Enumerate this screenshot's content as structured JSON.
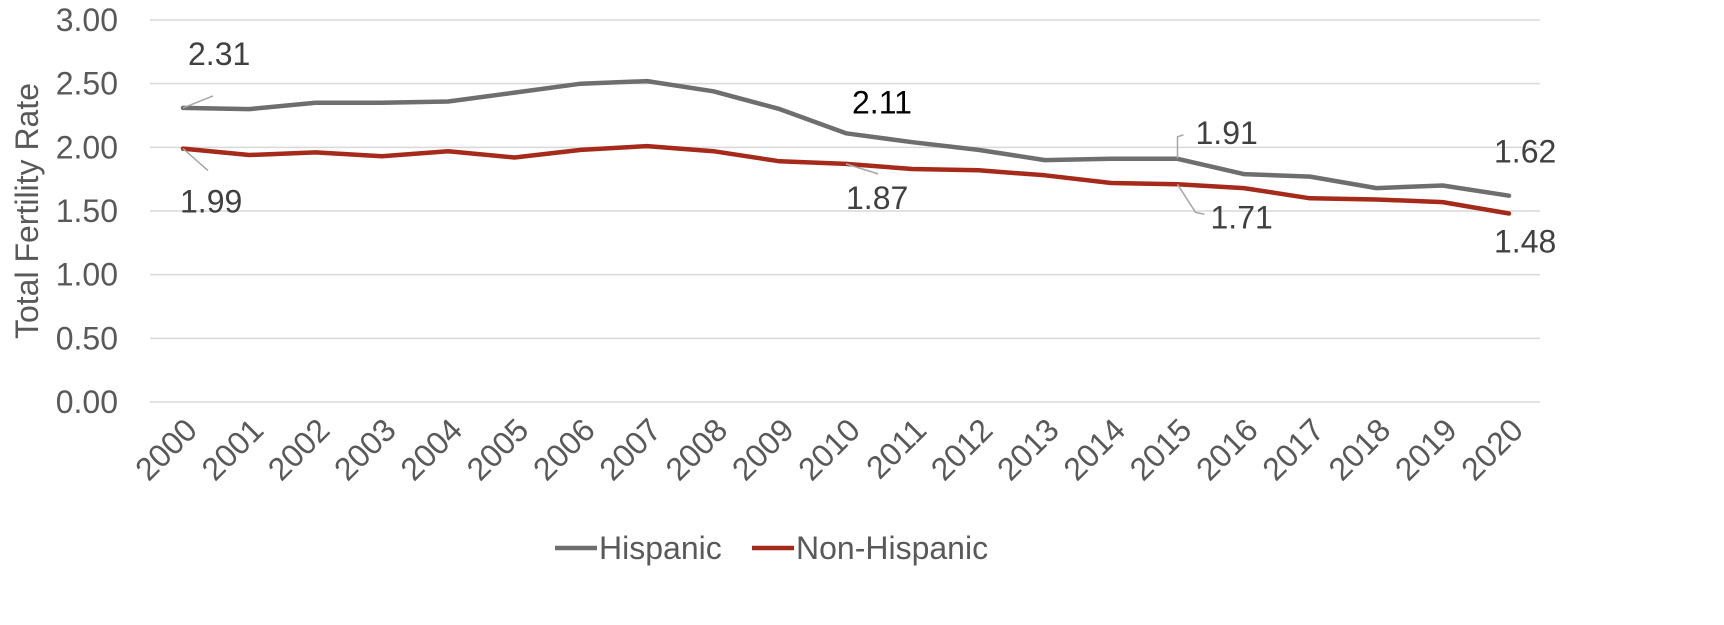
{
  "chart_data": {
    "type": "line",
    "ylabel": "Total Fertility Rate",
    "xlabel": "",
    "ylim": [
      0,
      3
    ],
    "yticks": [
      "0.00",
      "0.50",
      "1.00",
      "1.50",
      "2.00",
      "2.50",
      "3.00"
    ],
    "grid": true,
    "legend_position": "bottom",
    "categories": [
      "2000",
      "2001",
      "2002",
      "2003",
      "2004",
      "2005",
      "2006",
      "2007",
      "2008",
      "2009",
      "2010",
      "2011",
      "2012",
      "2013",
      "2014",
      "2015",
      "2016",
      "2017",
      "2018",
      "2019",
      "2020"
    ],
    "series": [
      {
        "name": "Hispanic",
        "color": "#6e6e6e",
        "values": [
          2.31,
          2.3,
          2.35,
          2.35,
          2.36,
          2.43,
          2.5,
          2.52,
          2.44,
          2.3,
          2.11,
          2.04,
          1.98,
          1.9,
          1.91,
          1.91,
          1.79,
          1.77,
          1.68,
          1.7,
          1.62
        ]
      },
      {
        "name": "Non-Hispanic",
        "color": "#a52a1a",
        "values": [
          1.99,
          1.94,
          1.96,
          1.93,
          1.97,
          1.92,
          1.98,
          2.01,
          1.97,
          1.89,
          1.87,
          1.83,
          1.82,
          1.78,
          1.72,
          1.71,
          1.68,
          1.6,
          1.59,
          1.57,
          1.48
        ]
      }
    ],
    "data_labels": [
      {
        "text": "2.31",
        "series": 0,
        "category": "2000"
      },
      {
        "text": "1.99",
        "series": 1,
        "category": "2000"
      },
      {
        "text": "2.11",
        "series": 0,
        "category": "2010"
      },
      {
        "text": "1.87",
        "series": 1,
        "category": "2010"
      },
      {
        "text": "1.91",
        "series": 0,
        "category": "2015"
      },
      {
        "text": "1.71",
        "series": 1,
        "category": "2015"
      },
      {
        "text": "1.62",
        "series": 0,
        "category": "2020"
      },
      {
        "text": "1.48",
        "series": 1,
        "category": "2020"
      }
    ]
  }
}
